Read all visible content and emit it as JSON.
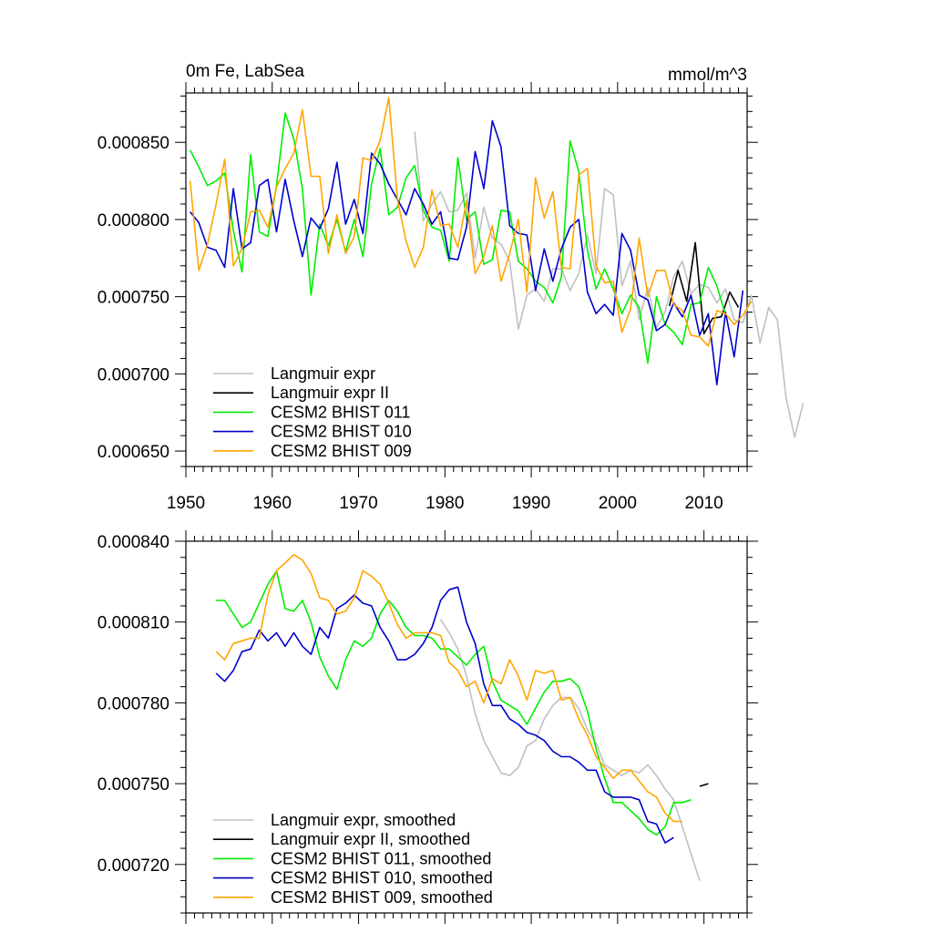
{
  "chart_data": [
    {
      "type": "line",
      "title_left": "0m Fe, LabSea",
      "title_right": "mmol/m^3",
      "xlim": [
        1950,
        2015
      ],
      "ylim": [
        0.00064,
        0.000882
      ],
      "x_ticks": [
        1950,
        1960,
        1970,
        1980,
        1990,
        2000,
        2010
      ],
      "x_tick_labels": [
        "1950",
        "1960",
        "1970",
        "1980",
        "1990",
        "2000",
        "2010"
      ],
      "y_ticks": [
        0.00065,
        0.0007,
        0.00075,
        0.0008,
        0.00085
      ],
      "y_tick_labels": [
        "0.000650",
        "0.000700",
        "0.000750",
        "0.000800",
        "0.000850"
      ],
      "show_x_tick_labels": true,
      "series": [
        {
          "name": "Langmuir expr",
          "color": "#c0c0c0",
          "x_start": 1976.5,
          "values": [
            0.000857,
            0.000799,
            0.00081,
            0.000818,
            0.000805,
            0.000806,
            0.000817,
            0.000775,
            0.000808,
            0.000788,
            0.000784,
            0.000773,
            0.000729,
            0.000751,
            0.000755,
            0.000747,
            0.000768,
            0.000768,
            0.000754,
            0.000765,
            0.00079,
            0.000765,
            0.00082,
            0.000816,
            0.000757,
            0.000773,
            0.000735,
            0.000756,
            0.00073,
            0.00074,
            0.000763,
            0.000773,
            0.000752,
            0.000758,
            0.000756,
            0.000746,
            0.000755,
            0.000735,
            0.000733,
            0.000751,
            0.00072,
            0.000743,
            0.000735,
            0.000685,
            0.000659,
            0.000681
          ]
        },
        {
          "name": "Langmuir expr II",
          "color": "#000000",
          "x_start": 2006,
          "values": [
            0.000744,
            0.000767,
            0.000747,
            0.000785,
            0.000726,
            0.000736,
            0.000737,
            0.000753,
            0.000743
          ]
        },
        {
          "name": "CESM2 BHIST 011",
          "color": "#00ee00",
          "x_start": 1950.5,
          "values": [
            0.000845,
            0.000834,
            0.000822,
            0.000825,
            0.00083,
            0.000793,
            0.000766,
            0.000842,
            0.000792,
            0.000789,
            0.000822,
            0.000869,
            0.000852,
            0.00082,
            0.000751,
            0.000797,
            0.000783,
            0.0008,
            0.000779,
            0.0008,
            0.000776,
            0.000823,
            0.000846,
            0.000803,
            0.000808,
            0.000827,
            0.000835,
            0.000806,
            0.000795,
            0.000793,
            0.000773,
            0.00084,
            0.0008,
            0.000805,
            0.000771,
            0.000774,
            0.000806,
            0.000805,
            0.000773,
            0.000768,
            0.00076,
            0.000756,
            0.000746,
            0.000763,
            0.000851,
            0.000831,
            0.00078,
            0.000755,
            0.000768,
            0.000755,
            0.000739,
            0.000751,
            0.000743,
            0.000707,
            0.00075,
            0.000732,
            0.000727,
            0.000719,
            0.000745,
            0.000746,
            0.000769,
            0.000757,
            0.000738
          ]
        },
        {
          "name": "CESM2 BHIST 010",
          "color": "#0000cc",
          "x_start": 1950.5,
          "values": [
            0.000805,
            0.000798,
            0.000782,
            0.00078,
            0.000769,
            0.00082,
            0.000781,
            0.000785,
            0.000822,
            0.000826,
            0.000792,
            0.000826,
            0.000799,
            0.000776,
            0.000801,
            0.000794,
            0.000807,
            0.000837,
            0.000797,
            0.000813,
            0.000791,
            0.000843,
            0.000836,
            0.000823,
            0.000813,
            0.000803,
            0.00082,
            0.00081,
            0.000797,
            0.000805,
            0.000775,
            0.000774,
            0.000795,
            0.000844,
            0.00082,
            0.000864,
            0.000847,
            0.000796,
            0.000791,
            0.00079,
            0.000754,
            0.000781,
            0.00076,
            0.000781,
            0.000795,
            0.0008,
            0.000753,
            0.000739,
            0.000745,
            0.000738,
            0.000791,
            0.00078,
            0.000751,
            0.000748,
            0.000728,
            0.000732,
            0.000746,
            0.000737,
            0.000751,
            0.000725,
            0.000739,
            0.000693,
            0.00074,
            0.000711,
            0.000754
          ]
        },
        {
          "name": "CESM2 BHIST 009",
          "color": "#ffa500",
          "x_start": 1950.5,
          "values": [
            0.000825,
            0.000767,
            0.000784,
            0.00081,
            0.000839,
            0.00077,
            0.000781,
            0.000805,
            0.000806,
            0.000795,
            0.000821,
            0.000833,
            0.000843,
            0.000871,
            0.000828,
            0.000828,
            0.000778,
            0.000803,
            0.000778,
            0.000789,
            0.00084,
            0.000838,
            0.000851,
            0.000879,
            0.000813,
            0.000786,
            0.000769,
            0.000782,
            0.000819,
            0.000796,
            0.000797,
            0.000782,
            0.000812,
            0.000765,
            0.000776,
            0.000796,
            0.00076,
            0.000778,
            0.0008,
            0.000753,
            0.000827,
            0.000801,
            0.000818,
            0.000769,
            0.000768,
            0.000829,
            0.000833,
            0.00077,
            0.000759,
            0.00076,
            0.000727,
            0.000742,
            0.000788,
            0.00075,
            0.000767,
            0.000767,
            0.000745,
            0.000741,
            0.000725,
            0.000724,
            0.000718,
            0.000741,
            0.000739,
            0.000732,
            0.000738,
            0.000747
          ]
        }
      ]
    },
    {
      "type": "line",
      "xlim": [
        1950,
        2015
      ],
      "ylim": [
        0.000702,
        0.00084
      ],
      "x_ticks": [
        1950,
        1960,
        1970,
        1980,
        1990,
        2000,
        2010
      ],
      "show_x_tick_labels": false,
      "y_ticks": [
        0.00072,
        0.00075,
        0.00078,
        0.00081,
        0.00084
      ],
      "y_tick_labels": [
        "0.000720",
        "0.000750",
        "0.000780",
        "0.000810",
        "0.000840"
      ],
      "series": [
        {
          "name": "Langmuir expr, smoothed",
          "color": "#c0c0c0",
          "x_start": 1979.5,
          "values": [
            0.000811,
            0.000806,
            0.0008,
            0.00079,
            0.000776,
            0.000766,
            0.00076,
            0.000754,
            0.000753,
            0.000756,
            0.000764,
            0.000766,
            0.000774,
            0.000779,
            0.000782,
            0.000782,
            0.000778,
            0.00077,
            0.000765,
            0.000757,
            0.000755,
            0.000753,
            0.000755,
            0.000754,
            0.000757,
            0.000753,
            0.000748,
            0.000744,
            0.000734,
            0.000724,
            0.000714
          ]
        },
        {
          "name": "Langmuir expr II, smoothed",
          "color": "#000000",
          "x_start": 2009.5,
          "values": [
            0.000749,
            0.00075
          ]
        },
        {
          "name": "CESM2 BHIST 011, smoothed",
          "color": "#00ee00",
          "x_start": 1953.5,
          "values": [
            0.000818,
            0.000818,
            0.000813,
            0.000808,
            0.00081,
            0.000817,
            0.000824,
            0.000829,
            0.000815,
            0.000814,
            0.000818,
            0.00081,
            0.000797,
            0.00079,
            0.000785,
            0.000796,
            0.000803,
            0.000801,
            0.000804,
            0.000813,
            0.000818,
            0.000814,
            0.000808,
            0.000805,
            0.000805,
            0.000804,
            0.0008,
            0.0008,
            0.000797,
            0.000794,
            0.000798,
            0.000801,
            0.000788,
            0.000781,
            0.000779,
            0.000777,
            0.000772,
            0.000778,
            0.000784,
            0.000788,
            0.000788,
            0.000789,
            0.000786,
            0.000777,
            0.000763,
            0.000752,
            0.000743,
            0.000743,
            0.00074,
            0.000737,
            0.000733,
            0.000731,
            0.000734,
            0.000743,
            0.000743,
            0.000744
          ]
        },
        {
          "name": "CESM2 BHIST 010, smoothed",
          "color": "#0000cc",
          "x_start": 1953.5,
          "values": [
            0.000791,
            0.000788,
            0.000792,
            0.000799,
            0.0008,
            0.000807,
            0.000803,
            0.000806,
            0.000801,
            0.000806,
            0.000801,
            0.000798,
            0.000808,
            0.000804,
            0.000815,
            0.000817,
            0.00082,
            0.000817,
            0.000816,
            0.000808,
            0.000803,
            0.000796,
            0.000796,
            0.000798,
            0.000802,
            0.000808,
            0.000818,
            0.000822,
            0.000823,
            0.00081,
            0.000802,
            0.000787,
            0.000779,
            0.000779,
            0.000774,
            0.000772,
            0.000769,
            0.000768,
            0.000766,
            0.000762,
            0.00076,
            0.00076,
            0.000758,
            0.000755,
            0.000755,
            0.000747,
            0.000745,
            0.000745,
            0.000745,
            0.000744,
            0.000736,
            0.000735,
            0.000728,
            0.00073
          ]
        },
        {
          "name": "CESM2 BHIST 009, smoothed",
          "color": "#ffa500",
          "x_start": 1953.5,
          "values": [
            0.000799,
            0.000796,
            0.000802,
            0.000803,
            0.000804,
            0.000804,
            0.00082,
            0.000829,
            0.000832,
            0.000835,
            0.000833,
            0.000828,
            0.000819,
            0.000818,
            0.000813,
            0.000814,
            0.000819,
            0.000829,
            0.000827,
            0.000824,
            0.000817,
            0.000809,
            0.000804,
            0.000806,
            0.000806,
            0.000806,
            0.000805,
            0.000795,
            0.000792,
            0.000786,
            0.000788,
            0.00078,
            0.000789,
            0.000787,
            0.000796,
            0.00079,
            0.000781,
            0.000792,
            0.000791,
            0.000792,
            0.000781,
            0.000782,
            0.000774,
            0.000768,
            0.00076,
            0.000756,
            0.000752,
            0.000755,
            0.000755,
            0.000751,
            0.000747,
            0.000745,
            0.000739,
            0.000736,
            0.000736
          ]
        }
      ]
    }
  ]
}
